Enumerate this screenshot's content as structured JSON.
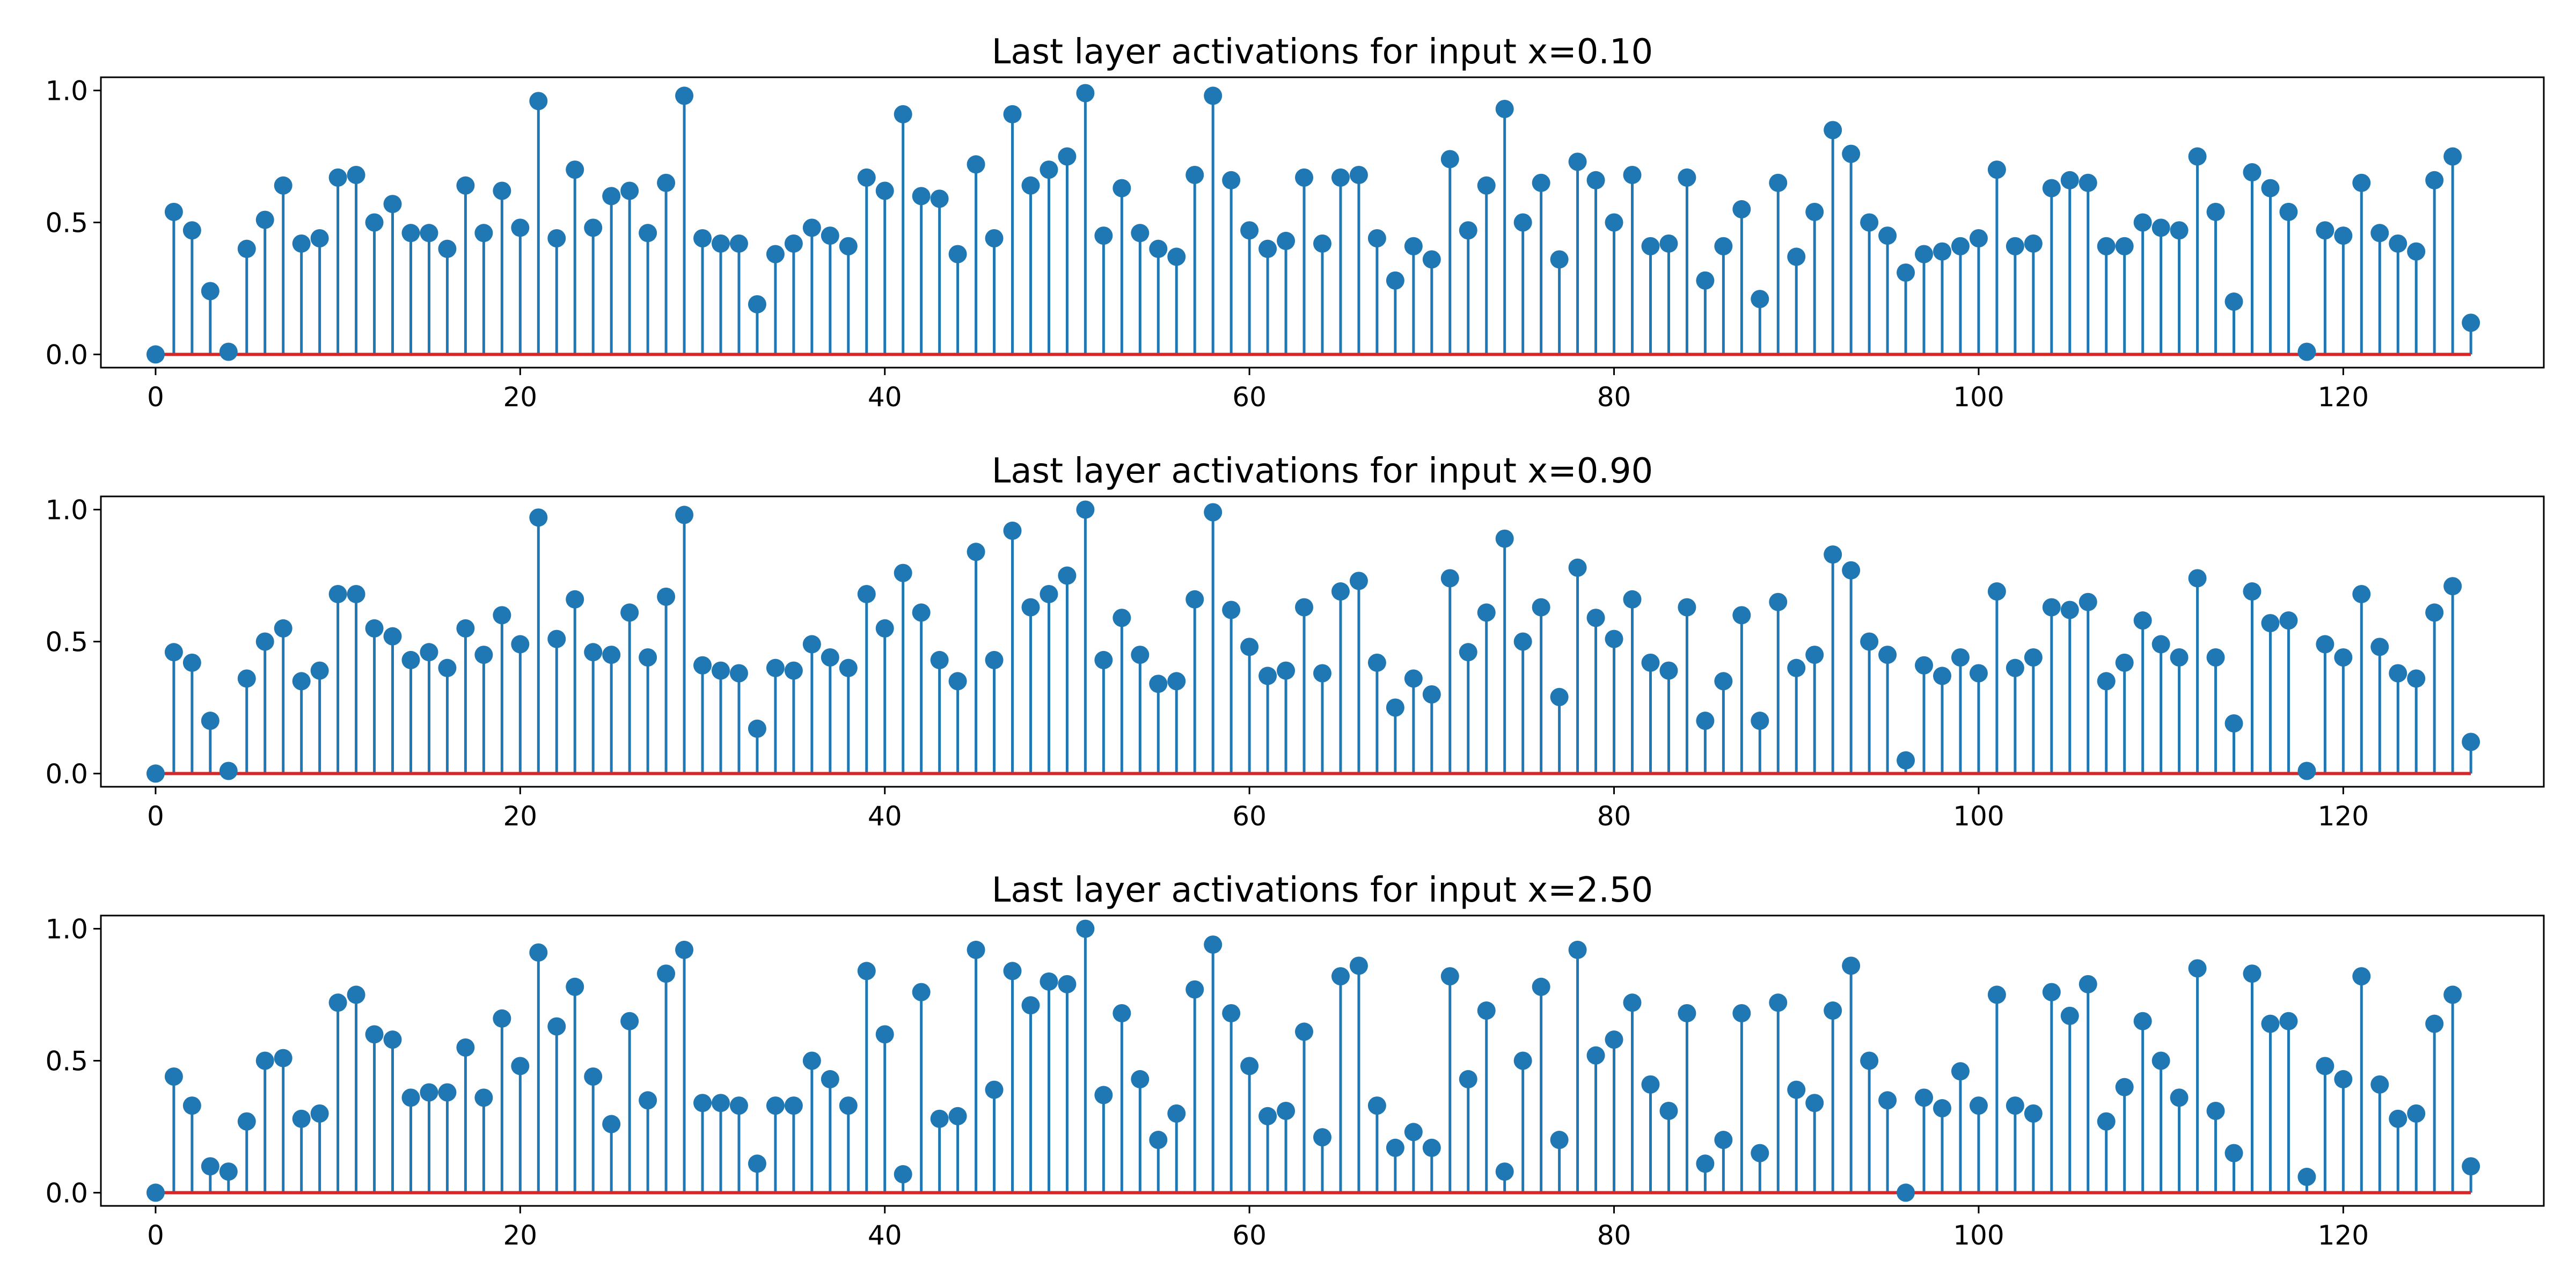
{
  "chart_data": [
    {
      "type": "stem",
      "title": "Last layer activations for input x=0.10",
      "xlabel": "",
      "ylabel": "",
      "xlim": [
        -3,
        131
      ],
      "ylim": [
        -0.05,
        1.05
      ],
      "xticks": [
        0,
        20,
        40,
        60,
        80,
        100,
        120
      ],
      "yticks": [
        0.0,
        0.5,
        1.0
      ],
      "ytick_labels": [
        "0.0",
        "0.5",
        "1.0"
      ],
      "x": [
        0,
        1,
        2,
        3,
        4,
        5,
        6,
        7,
        8,
        9,
        10,
        11,
        12,
        13,
        14,
        15,
        16,
        17,
        18,
        19,
        20,
        21,
        22,
        23,
        24,
        25,
        26,
        27,
        28,
        29,
        30,
        31,
        32,
        33,
        34,
        35,
        36,
        37,
        38,
        39,
        40,
        41,
        42,
        43,
        44,
        45,
        46,
        47,
        48,
        49,
        50,
        51,
        52,
        53,
        54,
        55,
        56,
        57,
        58,
        59,
        60,
        61,
        62,
        63,
        64,
        65,
        66,
        67,
        68,
        69,
        70,
        71,
        72,
        73,
        74,
        75,
        76,
        77,
        78,
        79,
        80,
        81,
        82,
        83,
        84,
        85,
        86,
        87,
        88,
        89,
        90,
        91,
        92,
        93,
        94,
        95,
        96,
        97,
        98,
        99,
        100,
        101,
        102,
        103,
        104,
        105,
        106,
        107,
        108,
        109,
        110,
        111,
        112,
        113,
        114,
        115,
        116,
        117,
        118,
        119,
        120,
        121,
        122,
        123,
        124,
        125,
        126,
        127
      ],
      "values": [
        0.0,
        0.54,
        0.47,
        0.24,
        0.01,
        0.4,
        0.51,
        0.64,
        0.42,
        0.44,
        0.67,
        0.68,
        0.5,
        0.57,
        0.46,
        0.46,
        0.4,
        0.64,
        0.46,
        0.62,
        0.48,
        0.96,
        0.44,
        0.7,
        0.48,
        0.6,
        0.62,
        0.46,
        0.65,
        0.98,
        0.44,
        0.42,
        0.42,
        0.19,
        0.38,
        0.42,
        0.48,
        0.45,
        0.41,
        0.67,
        0.62,
        0.91,
        0.6,
        0.59,
        0.38,
        0.72,
        0.44,
        0.91,
        0.64,
        0.7,
        0.75,
        0.99,
        0.45,
        0.63,
        0.46,
        0.4,
        0.37,
        0.68,
        0.98,
        0.66,
        0.47,
        0.4,
        0.43,
        0.67,
        0.42,
        0.67,
        0.68,
        0.44,
        0.28,
        0.41,
        0.36,
        0.74,
        0.47,
        0.64,
        0.93,
        0.5,
        0.65,
        0.36,
        0.73,
        0.66,
        0.5,
        0.68,
        0.41,
        0.42,
        0.67,
        0.28,
        0.41,
        0.55,
        0.21,
        0.65,
        0.37,
        0.54,
        0.85,
        0.76,
        0.5,
        0.45,
        0.31,
        0.38,
        0.39,
        0.41,
        0.44,
        0.7,
        0.41,
        0.42,
        0.63,
        0.66,
        0.65,
        0.41,
        0.41,
        0.5,
        0.48,
        0.47,
        0.75,
        0.54,
        0.2,
        0.69,
        0.63,
        0.54,
        0.01,
        0.47,
        0.45,
        0.65,
        0.46,
        0.42,
        0.39,
        0.66,
        0.75,
        0.12
      ],
      "colors": {
        "stem": "#1f77b4",
        "baseline": "#d62728",
        "marker": "#1f77b4"
      }
    },
    {
      "type": "stem",
      "title": "Last layer activations for input x=0.90",
      "xlabel": "",
      "ylabel": "",
      "xlim": [
        -3,
        131
      ],
      "ylim": [
        -0.05,
        1.05
      ],
      "xticks": [
        0,
        20,
        40,
        60,
        80,
        100,
        120
      ],
      "yticks": [
        0.0,
        0.5,
        1.0
      ],
      "ytick_labels": [
        "0.0",
        "0.5",
        "1.0"
      ],
      "x": [
        0,
        1,
        2,
        3,
        4,
        5,
        6,
        7,
        8,
        9,
        10,
        11,
        12,
        13,
        14,
        15,
        16,
        17,
        18,
        19,
        20,
        21,
        22,
        23,
        24,
        25,
        26,
        27,
        28,
        29,
        30,
        31,
        32,
        33,
        34,
        35,
        36,
        37,
        38,
        39,
        40,
        41,
        42,
        43,
        44,
        45,
        46,
        47,
        48,
        49,
        50,
        51,
        52,
        53,
        54,
        55,
        56,
        57,
        58,
        59,
        60,
        61,
        62,
        63,
        64,
        65,
        66,
        67,
        68,
        69,
        70,
        71,
        72,
        73,
        74,
        75,
        76,
        77,
        78,
        79,
        80,
        81,
        82,
        83,
        84,
        85,
        86,
        87,
        88,
        89,
        90,
        91,
        92,
        93,
        94,
        95,
        96,
        97,
        98,
        99,
        100,
        101,
        102,
        103,
        104,
        105,
        106,
        107,
        108,
        109,
        110,
        111,
        112,
        113,
        114,
        115,
        116,
        117,
        118,
        119,
        120,
        121,
        122,
        123,
        124,
        125,
        126,
        127
      ],
      "values": [
        0.0,
        0.46,
        0.42,
        0.2,
        0.01,
        0.36,
        0.5,
        0.55,
        0.35,
        0.39,
        0.68,
        0.68,
        0.55,
        0.52,
        0.43,
        0.46,
        0.4,
        0.55,
        0.45,
        0.6,
        0.49,
        0.97,
        0.51,
        0.66,
        0.46,
        0.45,
        0.61,
        0.44,
        0.67,
        0.98,
        0.41,
        0.39,
        0.38,
        0.17,
        0.4,
        0.39,
        0.49,
        0.44,
        0.4,
        0.68,
        0.55,
        0.76,
        0.61,
        0.43,
        0.35,
        0.84,
        0.43,
        0.92,
        0.63,
        0.68,
        0.75,
        1.0,
        0.43,
        0.59,
        0.45,
        0.34,
        0.35,
        0.66,
        0.99,
        0.62,
        0.48,
        0.37,
        0.39,
        0.63,
        0.38,
        0.69,
        0.73,
        0.42,
        0.25,
        0.36,
        0.3,
        0.74,
        0.46,
        0.61,
        0.89,
        0.5,
        0.63,
        0.29,
        0.78,
        0.59,
        0.51,
        0.66,
        0.42,
        0.39,
        0.63,
        0.2,
        0.35,
        0.6,
        0.2,
        0.65,
        0.4,
        0.45,
        0.83,
        0.77,
        0.5,
        0.45,
        0.05,
        0.41,
        0.37,
        0.44,
        0.38,
        0.69,
        0.4,
        0.44,
        0.63,
        0.62,
        0.65,
        0.35,
        0.42,
        0.58,
        0.49,
        0.44,
        0.74,
        0.44,
        0.19,
        0.69,
        0.57,
        0.58,
        0.01,
        0.49,
        0.44,
        0.68,
        0.48,
        0.38,
        0.36,
        0.61,
        0.71,
        0.12
      ],
      "colors": {
        "stem": "#1f77b4",
        "baseline": "#d62728",
        "marker": "#1f77b4"
      }
    },
    {
      "type": "stem",
      "title": "Last layer activations for input x=2.50",
      "xlabel": "",
      "ylabel": "",
      "xlim": [
        -3,
        131
      ],
      "ylim": [
        -0.05,
        1.05
      ],
      "xticks": [
        0,
        20,
        40,
        60,
        80,
        100,
        120
      ],
      "yticks": [
        0.0,
        0.5,
        1.0
      ],
      "ytick_labels": [
        "0.0",
        "0.5",
        "1.0"
      ],
      "x": [
        0,
        1,
        2,
        3,
        4,
        5,
        6,
        7,
        8,
        9,
        10,
        11,
        12,
        13,
        14,
        15,
        16,
        17,
        18,
        19,
        20,
        21,
        22,
        23,
        24,
        25,
        26,
        27,
        28,
        29,
        30,
        31,
        32,
        33,
        34,
        35,
        36,
        37,
        38,
        39,
        40,
        41,
        42,
        43,
        44,
        45,
        46,
        47,
        48,
        49,
        50,
        51,
        52,
        53,
        54,
        55,
        56,
        57,
        58,
        59,
        60,
        61,
        62,
        63,
        64,
        65,
        66,
        67,
        68,
        69,
        70,
        71,
        72,
        73,
        74,
        75,
        76,
        77,
        78,
        79,
        80,
        81,
        82,
        83,
        84,
        85,
        86,
        87,
        88,
        89,
        90,
        91,
        92,
        93,
        94,
        95,
        96,
        97,
        98,
        99,
        100,
        101,
        102,
        103,
        104,
        105,
        106,
        107,
        108,
        109,
        110,
        111,
        112,
        113,
        114,
        115,
        116,
        117,
        118,
        119,
        120,
        121,
        122,
        123,
        124,
        125,
        126,
        127
      ],
      "values": [
        0.0,
        0.44,
        0.33,
        0.1,
        0.08,
        0.27,
        0.5,
        0.51,
        0.28,
        0.3,
        0.72,
        0.75,
        0.6,
        0.58,
        0.36,
        0.38,
        0.38,
        0.55,
        0.36,
        0.66,
        0.48,
        0.91,
        0.63,
        0.78,
        0.44,
        0.26,
        0.65,
        0.35,
        0.83,
        0.92,
        0.34,
        0.34,
        0.33,
        0.11,
        0.33,
        0.33,
        0.5,
        0.43,
        0.33,
        0.84,
        0.6,
        0.07,
        0.76,
        0.28,
        0.29,
        0.92,
        0.39,
        0.84,
        0.71,
        0.8,
        0.79,
        1.0,
        0.37,
        0.68,
        0.43,
        0.2,
        0.3,
        0.77,
        0.94,
        0.68,
        0.48,
        0.29,
        0.31,
        0.61,
        0.21,
        0.82,
        0.86,
        0.33,
        0.17,
        0.23,
        0.17,
        0.82,
        0.43,
        0.69,
        0.08,
        0.5,
        0.78,
        0.2,
        0.92,
        0.52,
        0.58,
        0.72,
        0.41,
        0.31,
        0.68,
        0.11,
        0.2,
        0.68,
        0.15,
        0.72,
        0.39,
        0.34,
        0.69,
        0.86,
        0.5,
        0.35,
        0.0,
        0.36,
        0.32,
        0.46,
        0.33,
        0.75,
        0.33,
        0.3,
        0.76,
        0.67,
        0.79,
        0.27,
        0.4,
        0.65,
        0.5,
        0.36,
        0.85,
        0.31,
        0.15,
        0.83,
        0.64,
        0.65,
        0.06,
        0.48,
        0.43,
        0.82,
        0.41,
        0.28,
        0.3,
        0.64,
        0.75,
        0.1
      ],
      "colors": {
        "stem": "#1f77b4",
        "baseline": "#d62728",
        "marker": "#1f77b4"
      }
    }
  ]
}
